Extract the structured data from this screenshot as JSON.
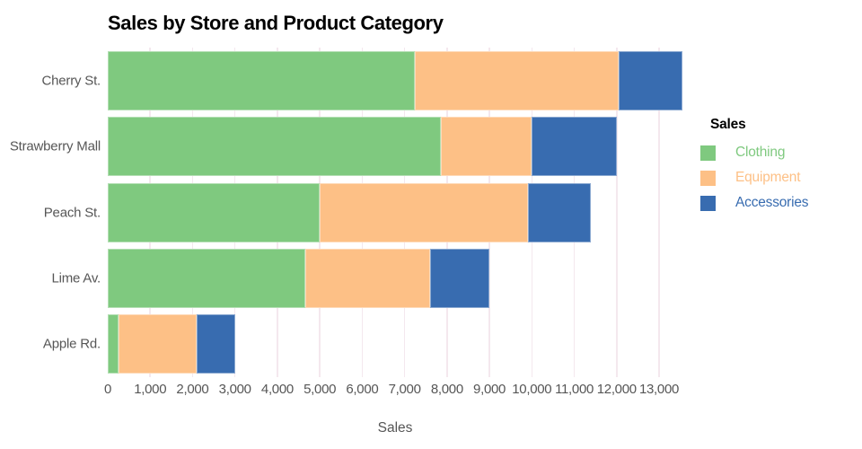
{
  "theme": {
    "background": "#ffffff",
    "grid_color": "#f4e8ee",
    "tick_label_color": "#565656",
    "axis_title_color": "#565656",
    "title_color": "#000000",
    "segment_stroke": "rgba(255,255,255,0.42)"
  },
  "legend": {
    "title": "Sales"
  },
  "chart_data": {
    "type": "bar",
    "orientation": "horizontal",
    "stacked": true,
    "title": "Sales by Store and Product Category",
    "xlabel": "Sales",
    "ylabel": "",
    "legend_title": "Sales",
    "legend_position": "right",
    "grid": true,
    "xlim": [
      0,
      13550
    ],
    "xticks": [
      0,
      1000,
      2000,
      3000,
      4000,
      5000,
      6000,
      7000,
      8000,
      9000,
      10000,
      11000,
      12000,
      13000
    ],
    "categories": [
      "Cherry St.",
      "Strawberry Mall",
      "Peach St.",
      "Lime Av.",
      "Apple Rd."
    ],
    "series": [
      {
        "name": "Clothing",
        "color": "#7fc97f",
        "values": [
          7250,
          7850,
          5000,
          4650,
          250
        ]
      },
      {
        "name": "Equipment",
        "color": "#fdc086",
        "values": [
          4800,
          2150,
          4900,
          2950,
          1850
        ]
      },
      {
        "name": "Accessories",
        "color": "#386cb0",
        "values": [
          1500,
          2000,
          1500,
          1400,
          900
        ]
      }
    ],
    "totals": [
      13550,
      12000,
      11400,
      9000,
      3000
    ]
  }
}
